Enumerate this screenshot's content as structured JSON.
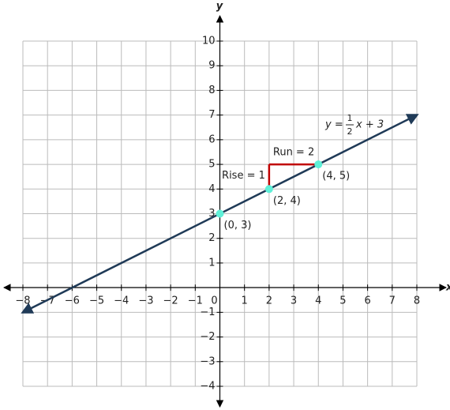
{
  "chart_data": {
    "type": "line",
    "x_label": "x",
    "y_label": "y",
    "xlim": [
      -8,
      8
    ],
    "ylim": [
      -4,
      10
    ],
    "xticks": [
      {
        "value": -8,
        "label": "−8"
      },
      {
        "value": -7,
        "label": "−7"
      },
      {
        "value": -6,
        "label": "−6"
      },
      {
        "value": -5,
        "label": "−5"
      },
      {
        "value": -4,
        "label": "−4"
      },
      {
        "value": -3,
        "label": "−3"
      },
      {
        "value": -2,
        "label": "−2"
      },
      {
        "value": -1,
        "label": "−1"
      },
      0,
      1,
      2,
      3,
      4,
      5,
      6,
      7,
      8
    ],
    "yticks": [
      {
        "value": -4,
        "label": "−4"
      },
      {
        "value": -3,
        "label": "−3"
      },
      {
        "value": -2,
        "label": "−2"
      },
      {
        "value": -1,
        "label": "−1"
      },
      1,
      2,
      3,
      4,
      5,
      6,
      7,
      8,
      9,
      10
    ],
    "grid": true,
    "line": {
      "color": "#1f3a57",
      "x": [
        -8,
        8
      ],
      "y": [
        -1,
        7
      ]
    },
    "points": {
      "color": "#5ff0d8",
      "x": [
        0,
        2,
        4
      ],
      "y": [
        3,
        4,
        5
      ],
      "value_labels": [
        "(0, 3)",
        "(2, 4)",
        "(4, 5)"
      ]
    },
    "rise": {
      "label": "Rise = 1",
      "color": "#c00000",
      "x": [
        2,
        2
      ],
      "y": [
        4,
        5
      ]
    },
    "run": {
      "label": "Run = 2",
      "color": "#c00000",
      "x": [
        2,
        4
      ],
      "y": [
        5,
        5
      ]
    },
    "equation": {
      "lhs": "y =",
      "numerator": "1",
      "denominator": "2",
      "rhs": "x + 3"
    }
  }
}
